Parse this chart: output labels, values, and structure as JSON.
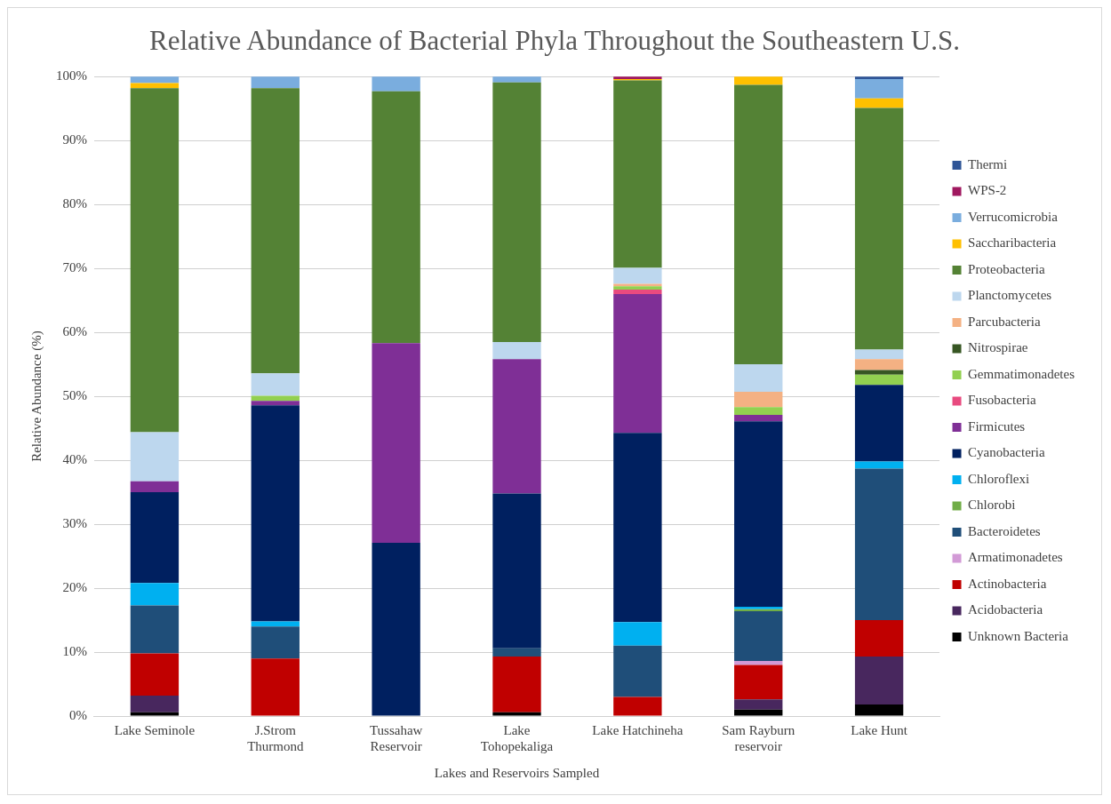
{
  "chart_data": {
    "type": "bar",
    "stacked": true,
    "title": "Relative Abundance of Bacterial Phyla Throughout the Southeastern U.S.",
    "xlabel": "Lakes and Reservoirs Sampled",
    "ylabel": "Relative Abundance (%)",
    "categories": [
      "Lake Seminole",
      "J.Strom Thurmond",
      "Tussahaw Reservoir",
      "Lake Tohopekaliga",
      "Lake Hatchineha",
      "Sam Rayburn reservoir",
      "Lake Hunt"
    ],
    "ylim": [
      0,
      100
    ],
    "yticks": [
      {
        "value": 0,
        "label": "0%"
      },
      {
        "value": 10,
        "label": "10%"
      },
      {
        "value": 20,
        "label": "20%"
      },
      {
        "value": 30,
        "label": "30%"
      },
      {
        "value": 40,
        "label": "40%"
      },
      {
        "value": 50,
        "label": "50%"
      },
      {
        "value": 60,
        "label": "60%"
      },
      {
        "value": 70,
        "label": "70%"
      },
      {
        "value": 80,
        "label": "80%"
      },
      {
        "value": 90,
        "label": "90%"
      },
      {
        "value": 100,
        "label": "100%"
      }
    ],
    "grid": "y",
    "legend": "right",
    "series": [
      {
        "name": "Unknown Bacteria",
        "color": "#000000",
        "values": [
          0.6,
          null,
          null,
          0.6,
          null,
          1.0,
          1.8
        ]
      },
      {
        "name": "Acidobacteria",
        "color": "#48275e",
        "values": [
          2.6,
          null,
          null,
          null,
          null,
          1.6,
          7.5
        ]
      },
      {
        "name": "Actinobacteria",
        "color": "#c00000",
        "values": [
          6.6,
          9.0,
          null,
          8.7,
          3.0,
          5.4,
          5.7
        ]
      },
      {
        "name": "Armatimonadetes",
        "color": "#d29ad6",
        "values": [
          null,
          null,
          null,
          null,
          null,
          0.6,
          null
        ]
      },
      {
        "name": "Bacteroidetes",
        "color": "#1f4e79",
        "values": [
          7.5,
          5.0,
          null,
          1.3,
          8.0,
          7.8,
          23.7
        ]
      },
      {
        "name": "Chlorobi",
        "color": "#70ad47",
        "values": [
          null,
          null,
          null,
          null,
          null,
          0.3,
          null
        ]
      },
      {
        "name": "Chloroflexi",
        "color": "#00b0f0",
        "values": [
          3.5,
          0.8,
          null,
          null,
          3.7,
          0.4,
          1.1
        ]
      },
      {
        "name": "Cyanobacteria",
        "color": "#002060",
        "values": [
          14.2,
          33.8,
          27.1,
          24.2,
          29.6,
          29.0,
          12.0
        ]
      },
      {
        "name": "Firmicutes",
        "color": "#7f2f96",
        "values": [
          1.7,
          0.7,
          31.2,
          21.0,
          21.7,
          1.0,
          null
        ]
      },
      {
        "name": "Fusobacteria",
        "color": "#e84a7f",
        "values": [
          null,
          null,
          null,
          null,
          0.7,
          null,
          null
        ]
      },
      {
        "name": "Gemmatimonadetes",
        "color": "#92d050",
        "values": [
          null,
          0.8,
          null,
          null,
          0.5,
          1.2,
          1.6
        ]
      },
      {
        "name": "Nitrospirae",
        "color": "#375623",
        "values": [
          null,
          null,
          null,
          null,
          null,
          null,
          0.7
        ]
      },
      {
        "name": "Parcubacteria",
        "color": "#f4b183",
        "values": [
          null,
          null,
          null,
          null,
          0.4,
          2.4,
          1.7
        ]
      },
      {
        "name": "Planctomycetes",
        "color": "#bdd7ee",
        "values": [
          7.7,
          3.5,
          null,
          2.7,
          2.5,
          4.3,
          1.5
        ]
      },
      {
        "name": "Proteobacteria",
        "color": "#548235",
        "values": [
          53.8,
          44.6,
          39.4,
          40.6,
          29.3,
          43.7,
          37.8
        ]
      },
      {
        "name": "Saccharibacteria",
        "color": "#ffc000",
        "values": [
          0.8,
          null,
          null,
          null,
          0.2,
          1.3,
          1.5
        ]
      },
      {
        "name": "Verrucomicrobia",
        "color": "#7aadde",
        "values": [
          1.0,
          1.8,
          2.3,
          0.9,
          null,
          null,
          3.0
        ]
      },
      {
        "name": "WPS-2",
        "color": "#a0185f",
        "values": [
          null,
          null,
          null,
          null,
          0.4,
          null,
          null
        ]
      },
      {
        "name": "Thermi",
        "color": "#2f5597",
        "values": [
          null,
          null,
          null,
          null,
          null,
          null,
          0.4
        ]
      }
    ]
  }
}
